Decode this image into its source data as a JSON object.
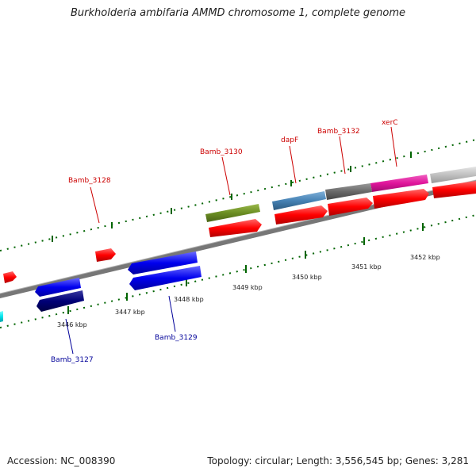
{
  "title": "Burkholderia ambifaria AMMD chromosome 1, complete genome",
  "footer": {
    "accession": "Accession: NC_008390",
    "summary": "Topology: circular; Length: 3,556,545 bp; Genes: 3,281"
  },
  "scale": {
    "labels": [
      "3446 kbp",
      "3447 kbp",
      "3448 kbp",
      "3449 kbp",
      "3450 kbp",
      "3451 kbp",
      "3452 kbp"
    ]
  },
  "genes": {
    "forward": [
      {
        "label": "Bamb_3128",
        "color": "#cc0000"
      },
      {
        "label": "Bamb_3130",
        "color": "#cc0000"
      },
      {
        "label": "dapF",
        "color": "#cc0000"
      },
      {
        "label": "Bamb_3132",
        "color": "#cc0000"
      },
      {
        "label": "xerC",
        "color": "#cc0000"
      }
    ],
    "reverse": [
      {
        "label": "Bamb_3127",
        "color": "#000099"
      },
      {
        "label": "Bamb_3129",
        "color": "#000099"
      }
    ]
  },
  "colors": {
    "cds_forward": "#ff0000",
    "cds_reverse": "#0000ee",
    "cds_reverse_dark": "#000077",
    "feature_green": "#6b8e23",
    "feature_steelblue": "#4682b4",
    "feature_gray": "#696969",
    "feature_magenta": "#e0149b",
    "feature_lightgray": "#c0c0c0",
    "feature_cyan": "#00e5ee",
    "tick": "#006400",
    "backbone": "#888888"
  }
}
